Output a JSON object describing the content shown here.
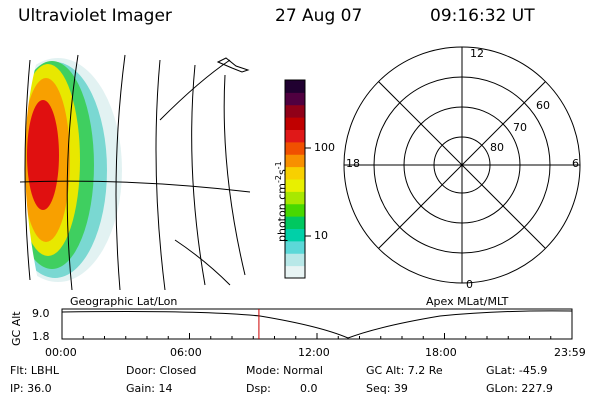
{
  "header": {
    "instrument": "Ultraviolet Imager",
    "date": "27 Aug 07",
    "time": "09:16:32 UT"
  },
  "colorbar": {
    "label": "photon cm",
    "label_exp1": "-2",
    "label_mid": "s",
    "label_exp2": "-1",
    "ticks": [
      "100",
      "10"
    ],
    "tick_values": [
      100,
      10
    ],
    "colors": [
      "#e8f4f4",
      "#b8e8e8",
      "#5cd8d8",
      "#00d0a8",
      "#00c860",
      "#48d800",
      "#a8e800",
      "#e8f000",
      "#f8d000",
      "#f89000",
      "#f05000",
      "#e01818",
      "#c00000",
      "#900018",
      "#500040",
      "#200030"
    ]
  },
  "polar_plot": {
    "labels_hour": [
      "12",
      "18",
      "6",
      "0"
    ],
    "labels_lat": [
      "60",
      "70",
      "80"
    ]
  },
  "timeline": {
    "left_label": "Geographic Lat/Lon",
    "right_label": "Apex MLat/MLT",
    "ylabel": "GC Alt",
    "yticks": [
      "9.0",
      "1.8"
    ],
    "xticks": [
      "00:00",
      "06:00",
      "12:00",
      "18:00",
      "23:59"
    ],
    "marker_time": "09:16"
  },
  "footer": {
    "row1": [
      {
        "text": "Flt: LBHL"
      },
      {
        "text": "Door: Closed"
      },
      {
        "text": "Mode: Normal"
      },
      {
        "text": "GC Alt: 7.2 Re"
      },
      {
        "text": "GLat: -45.9"
      }
    ],
    "row2": [
      {
        "text": "IP: 36.0"
      },
      {
        "text": "Gain: 14"
      },
      {
        "text": "Dsp:",
        "text2": "0.0"
      },
      {
        "text": "Seq: 39"
      },
      {
        "text": "GLon: 227.9"
      }
    ]
  },
  "colors": {
    "marker": "#cc0000",
    "line": "#000000"
  }
}
